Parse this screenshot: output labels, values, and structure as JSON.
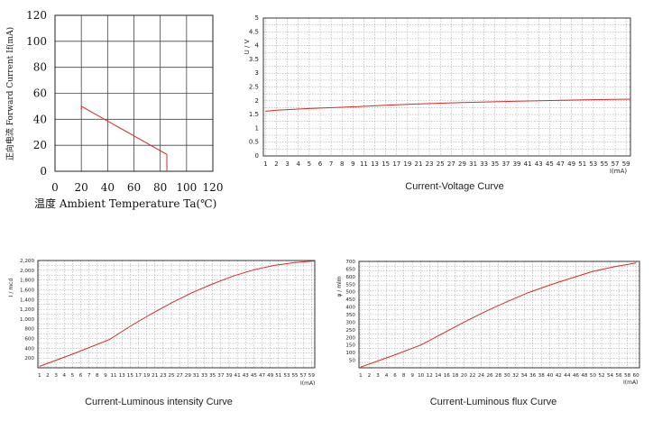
{
  "chart_data": [
    {
      "type": "line",
      "xlabel": "温度 Ambient Temperature Ta(℃)",
      "ylabel": "正向电流 Forward Current If(mA)",
      "xlim": [
        0,
        120
      ],
      "ylim": [
        0,
        120
      ],
      "x_ticks": [
        "0",
        "20",
        "40",
        "60",
        "80",
        "100",
        "120"
      ],
      "y_ticks": [
        "0",
        "20",
        "40",
        "60",
        "80",
        "100",
        "120"
      ],
      "grid": true,
      "series": [
        {
          "x": [
            20,
            20,
            85,
            85
          ],
          "y": [
            47,
            50,
            13,
            0
          ],
          "color": "#d62a2a"
        }
      ]
    },
    {
      "type": "line",
      "caption": "Current-Voltage Curve",
      "ylabel": "U / V",
      "xlabel": "I(mA)",
      "xlim": [
        1,
        60
      ],
      "ylim": [
        0,
        5
      ],
      "x_ticks": [
        "1",
        "2",
        "3",
        "4",
        "5",
        "6",
        "7",
        "8",
        "9",
        "11",
        "13",
        "15",
        "17",
        "19",
        "21",
        "23",
        "25",
        "27",
        "29",
        "31",
        "33",
        "35",
        "37",
        "39",
        "41",
        "43",
        "45",
        "47",
        "49",
        "51",
        "53",
        "55",
        "57",
        "59"
      ],
      "y_ticks": [
        "0",
        "0.5",
        "1",
        "1.5",
        "2",
        "2.5",
        "3",
        "3.5",
        "4",
        "4.5",
        "5"
      ],
      "grid": true,
      "series": [
        {
          "x": [
            1,
            2,
            5,
            10,
            15,
            20,
            30,
            40,
            50,
            60
          ],
          "y": [
            1.62,
            1.66,
            1.72,
            1.79,
            1.84,
            1.88,
            1.94,
            1.99,
            2.03,
            2.06
          ],
          "color": "#d62a2a"
        }
      ]
    },
    {
      "type": "line",
      "caption": "Current-Luminous intensity Curve",
      "ylabel": "I / mcd",
      "xlabel": "I(mA)",
      "xlim": [
        1,
        60
      ],
      "ylim": [
        0,
        2200
      ],
      "x_ticks": [
        "1",
        "2",
        "3",
        "4",
        "5",
        "6",
        "7",
        "8",
        "9",
        "11",
        "13",
        "15",
        "17",
        "19",
        "21",
        "23",
        "25",
        "27",
        "29",
        "31",
        "33",
        "35",
        "37",
        "39",
        "41",
        "43",
        "45",
        "47",
        "49",
        "51",
        "53",
        "55",
        "57",
        "59"
      ],
      "y_ticks": [
        "200",
        "400",
        "600",
        "800",
        "1,000",
        "1,200",
        "1,400",
        "1,600",
        "1,800",
        "2,000",
        "2,200"
      ],
      "grid": true,
      "series": [
        {
          "x": [
            1,
            5,
            10,
            15,
            20,
            25,
            30,
            35,
            40,
            45,
            50,
            55,
            60
          ],
          "y": [
            30,
            280,
            580,
            850,
            1100,
            1330,
            1540,
            1720,
            1880,
            2010,
            2100,
            2160,
            2190
          ],
          "color": "#d62a2a"
        }
      ]
    },
    {
      "type": "line",
      "caption": "Current-Luminous flux Curve",
      "ylabel": "φ / mlm",
      "xlabel": "I(mA)",
      "xlim": [
        1,
        80
      ],
      "ylim": [
        0,
        700
      ],
      "x_ticks": [
        "1",
        "2",
        "3",
        "4",
        "6",
        "8",
        "9",
        "10",
        "12",
        "14",
        "16",
        "18",
        "20",
        "22",
        "24",
        "26",
        "28",
        "30",
        "32",
        "34",
        "36",
        "38",
        "40",
        "42",
        "44",
        "46",
        "48",
        "50",
        "52",
        "54",
        "56",
        "58",
        "60"
      ],
      "y_ticks": [
        "50",
        "100",
        "150",
        "200",
        "250",
        "300",
        "350",
        "400",
        "450",
        "500",
        "550",
        "600",
        "650",
        "700"
      ],
      "grid": true,
      "series": [
        {
          "x": [
            1,
            5,
            10,
            15,
            20,
            25,
            30,
            35,
            40,
            45,
            50,
            55,
            60
          ],
          "y": [
            5,
            75,
            150,
            225,
            300,
            370,
            435,
            495,
            545,
            590,
            635,
            665,
            690
          ],
          "color": "#d62a2a"
        }
      ]
    }
  ]
}
